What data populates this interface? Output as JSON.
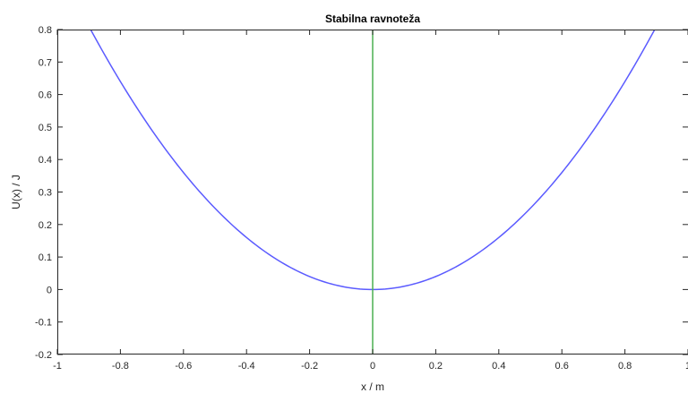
{
  "chart_data": {
    "type": "line",
    "title": "Stabilna ravnoteža",
    "xlabel": "x / m",
    "ylabel": "U(x) / J",
    "xlim": [
      -1,
      1
    ],
    "ylim": [
      -0.2,
      0.8
    ],
    "x_ticks": [
      -1,
      -0.8,
      -0.6,
      -0.4,
      -0.2,
      0,
      0.2,
      0.4,
      0.6,
      0.8,
      1
    ],
    "x_tick_labels": [
      "-1",
      "-0.8",
      "-0.6",
      "-0.4",
      "-0.2",
      "0",
      "0.2",
      "0.4",
      "0.6",
      "0.8",
      "1"
    ],
    "y_ticks": [
      -0.2,
      -0.1,
      0,
      0.1,
      0.2,
      0.3,
      0.4,
      0.5,
      0.6,
      0.7,
      0.8
    ],
    "y_tick_labels": [
      "-0.2",
      "-0.1",
      "0",
      "0.1",
      "0.2",
      "0.3",
      "0.4",
      "0.5",
      "0.6",
      "0.7",
      "0.8"
    ],
    "grid": false,
    "series": [
      {
        "color": "#5b5bff",
        "x": [
          -1,
          -0.9,
          -0.8,
          -0.7,
          -0.6,
          -0.5,
          -0.4,
          -0.3,
          -0.2,
          -0.1,
          0,
          0.1,
          0.2,
          0.3,
          0.4,
          0.5,
          0.6,
          0.7,
          0.8,
          0.9,
          1
        ],
        "y": [
          1.0,
          0.81,
          0.64,
          0.49,
          0.36,
          0.25,
          0.16,
          0.09,
          0.04,
          0.01,
          0,
          0.01,
          0.04,
          0.09,
          0.16,
          0.25,
          0.36,
          0.49,
          0.64,
          0.81,
          1.0
        ]
      },
      {
        "color": "#4caf50",
        "x": [
          0,
          0
        ],
        "y": [
          -0.2,
          0.8
        ]
      }
    ]
  }
}
